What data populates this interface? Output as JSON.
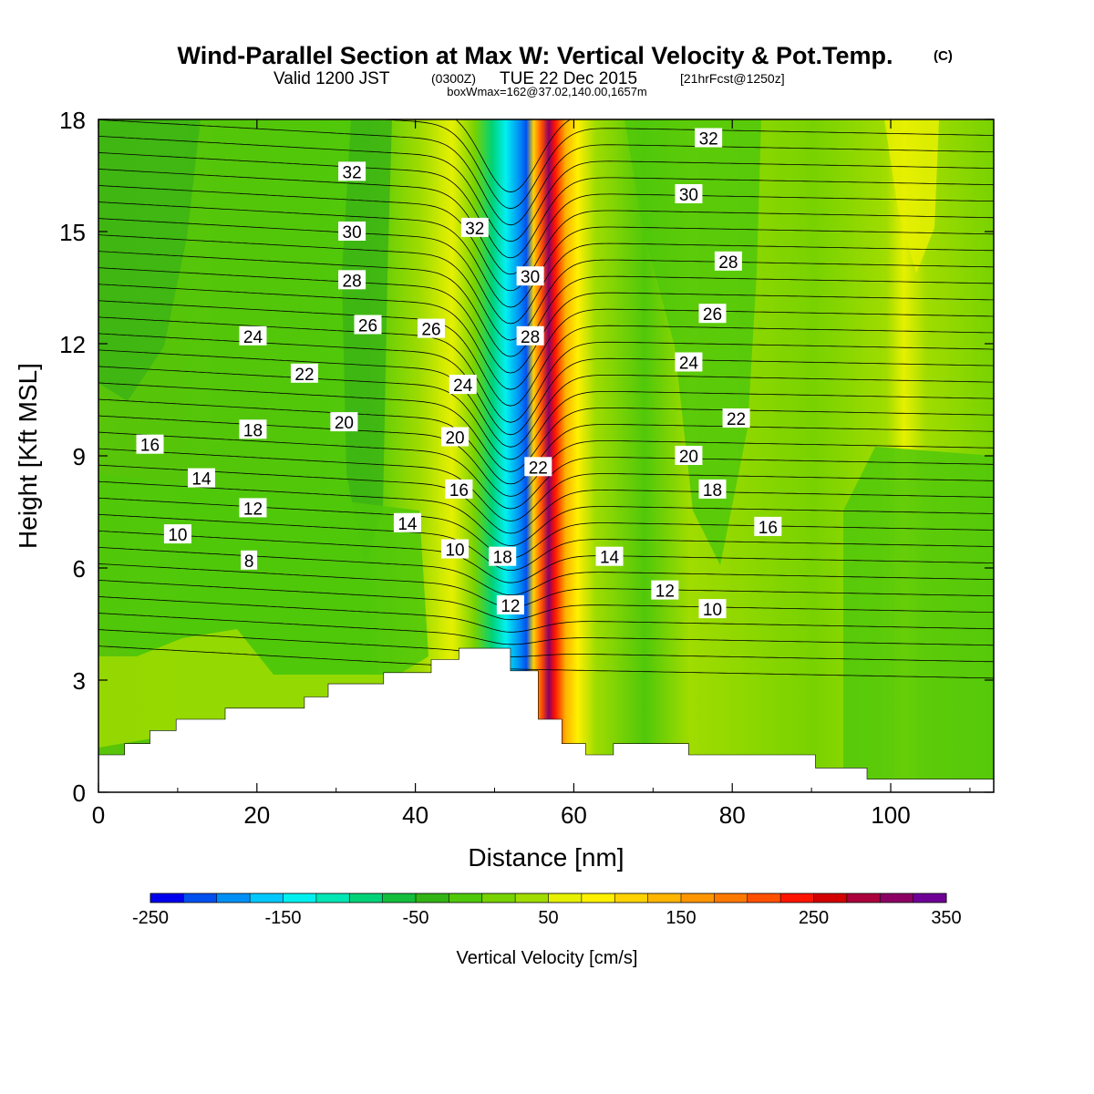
{
  "header": {
    "title": "Wind-Parallel Section at Max W: Vertical Velocity & Pot.Temp.",
    "title_mark": "(C)",
    "valid_prefix": "Valid 1200 JST",
    "valid_utc": "(0300Z)",
    "valid_date": "TUE 22 Dec 2015",
    "forecast": "[21hrFcst@1250z]",
    "boxinfo": "boxWmax=162@37.02,140.00,1657m"
  },
  "chart_data": {
    "type": "contour-section",
    "xlabel": "Distance [nm]",
    "ylabel": "Height [Kft MSL]",
    "xlim": [
      0,
      113
    ],
    "ylim": [
      0,
      18
    ],
    "x_ticks": [
      "0",
      "20",
      "40",
      "60",
      "80",
      "100"
    ],
    "y_ticks": [
      "0",
      "3",
      "6",
      "9",
      "12",
      "15",
      "18"
    ],
    "colorbar": {
      "label": "Vertical Velocity [cm/s]",
      "range": [
        -250,
        350
      ],
      "step": 25,
      "tick_labels": [
        "-250",
        "-150",
        "-50",
        "50",
        "150",
        "250",
        "350"
      ],
      "colors": [
        "#0000ee",
        "#0050f0",
        "#0090f5",
        "#00c8ff",
        "#00f0f0",
        "#00e6b4",
        "#00d278",
        "#14be3c",
        "#32b414",
        "#50c80a",
        "#78d200",
        "#a0dc00",
        "#e6f000",
        "#fff000",
        "#ffd200",
        "#ffb400",
        "#ff9600",
        "#ff7800",
        "#ff5000",
        "#ff1400",
        "#d20000",
        "#aa003c",
        "#8c0064",
        "#6e0096"
      ]
    },
    "theta_contour_labels": [
      {
        "text": "32",
        "x": 32,
        "y": 16.6
      },
      {
        "text": "30",
        "x": 32,
        "y": 15.0
      },
      {
        "text": "28",
        "x": 32,
        "y": 13.7
      },
      {
        "text": "26",
        "x": 34,
        "y": 12.5
      },
      {
        "text": "26",
        "x": 42,
        "y": 12.4
      },
      {
        "text": "24",
        "x": 19.5,
        "y": 12.2
      },
      {
        "text": "22",
        "x": 26,
        "y": 11.2
      },
      {
        "text": "20",
        "x": 31,
        "y": 9.9
      },
      {
        "text": "18",
        "x": 19.5,
        "y": 9.7
      },
      {
        "text": "16",
        "x": 6.5,
        "y": 9.3
      },
      {
        "text": "14",
        "x": 13,
        "y": 8.4
      },
      {
        "text": "12",
        "x": 19.5,
        "y": 7.6
      },
      {
        "text": "10",
        "x": 10,
        "y": 6.9
      },
      {
        "text": "8",
        "x": 19,
        "y": 6.2
      },
      {
        "text": "14",
        "x": 39,
        "y": 7.2
      },
      {
        "text": "10",
        "x": 45,
        "y": 6.5
      },
      {
        "text": "24",
        "x": 46,
        "y": 10.9
      },
      {
        "text": "20",
        "x": 45,
        "y": 9.5
      },
      {
        "text": "16",
        "x": 45.5,
        "y": 8.1
      },
      {
        "text": "32",
        "x": 47.5,
        "y": 15.1
      },
      {
        "text": "30",
        "x": 54.5,
        "y": 13.8
      },
      {
        "text": "28",
        "x": 54.5,
        "y": 12.2
      },
      {
        "text": "22",
        "x": 55.5,
        "y": 8.7
      },
      {
        "text": "18",
        "x": 51,
        "y": 6.3
      },
      {
        "text": "12",
        "x": 52,
        "y": 5.0
      },
      {
        "text": "32",
        "x": 77,
        "y": 17.5
      },
      {
        "text": "30",
        "x": 74.5,
        "y": 16.0
      },
      {
        "text": "28",
        "x": 79.5,
        "y": 14.2
      },
      {
        "text": "26",
        "x": 77.5,
        "y": 12.8
      },
      {
        "text": "24",
        "x": 74.5,
        "y": 11.5
      },
      {
        "text": "22",
        "x": 80.5,
        "y": 10.0
      },
      {
        "text": "20",
        "x": 74.5,
        "y": 9.0
      },
      {
        "text": "18",
        "x": 77.5,
        "y": 8.1
      },
      {
        "text": "16",
        "x": 84.5,
        "y": 7.1
      },
      {
        "text": "14",
        "x": 64.5,
        "y": 6.3
      },
      {
        "text": "12",
        "x": 71.5,
        "y": 5.4
      },
      {
        "text": "10",
        "x": 77.5,
        "y": 4.9
      }
    ]
  }
}
